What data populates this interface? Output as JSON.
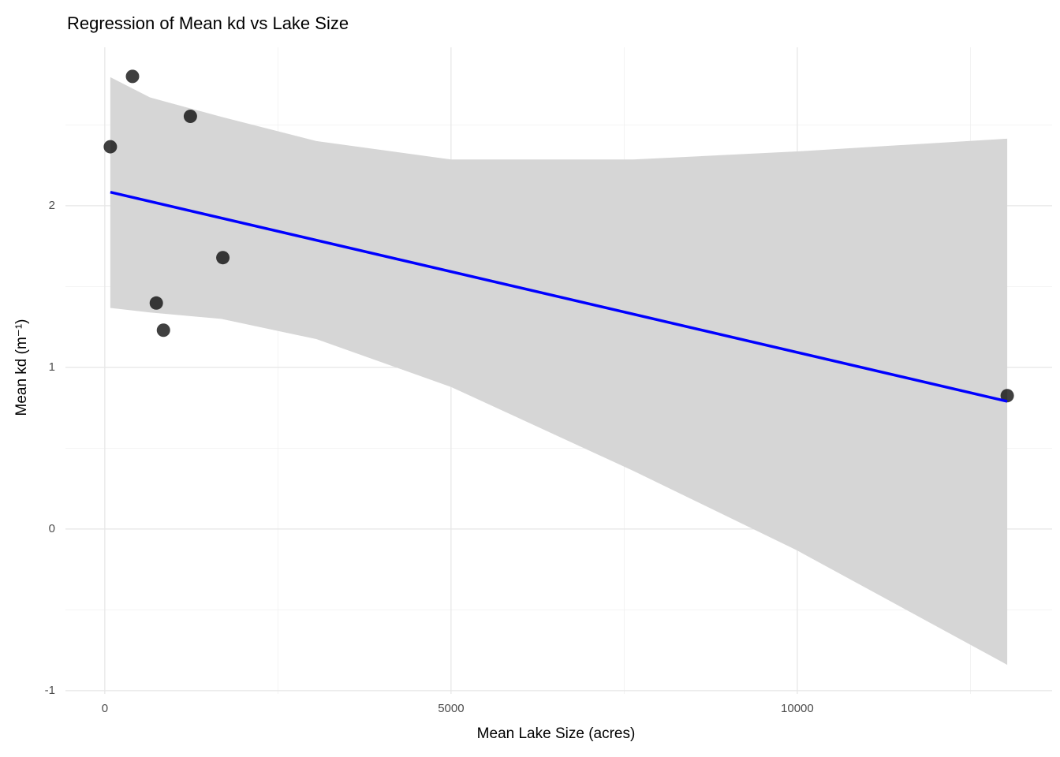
{
  "chart_data": {
    "type": "scatter",
    "title": "Regression of Mean kd vs Lake Size",
    "x_label": "Mean Lake Size (acres)",
    "y_label": "Mean kd (m⁻¹)",
    "points": {
      "color": "#000000",
      "x": [
        80,
        400,
        1236,
        1705,
        744,
        847,
        13032
      ],
      "y": [
        2.365,
        2.8,
        2.553,
        1.679,
        1.398,
        1.23,
        0.825
      ]
    },
    "fit": {
      "color": "#0000ff",
      "x": [
        80,
        13032
      ],
      "y": [
        2.084,
        0.79
      ]
    },
    "band": {
      "color": "#d6d6d6",
      "x": [
        80,
        652,
        1682,
        3055,
        5000,
        7632,
        10000,
        13032
      ],
      "upper": [
        2.795,
        2.67,
        2.55,
        2.4,
        2.286,
        2.286,
        2.336,
        2.415
      ],
      "lower": [
        1.368,
        1.34,
        1.3,
        1.175,
        0.879,
        0.36,
        -0.133,
        -0.84
      ]
    },
    "xlim": [
      -568,
      13680
    ],
    "ylim": [
      -1.02,
      2.98
    ],
    "xticks": [
      0,
      5000,
      10000
    ],
    "yticks": [
      -1,
      0,
      1,
      2
    ],
    "grid": true
  }
}
